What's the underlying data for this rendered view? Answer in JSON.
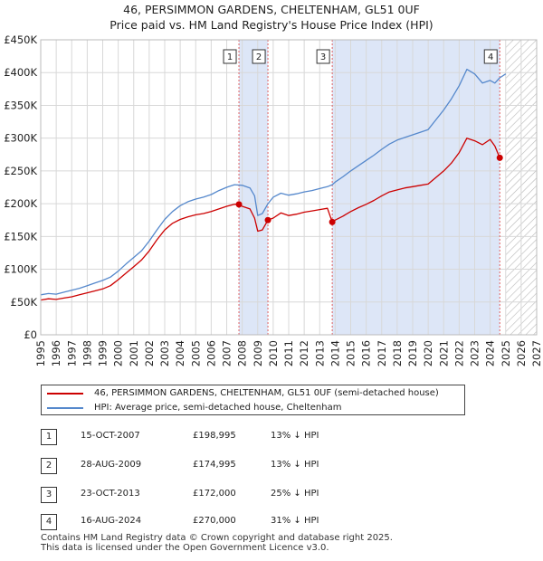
{
  "title_line1": "46, PERSIMMON GARDENS, CHELTENHAM, GL51 0UF",
  "title_line2": "Price paid vs. HM Land Registry's House Price Index (HPI)",
  "colors": {
    "property": "#cc0000",
    "hpi": "#5588cc",
    "shade": "#dde6f7",
    "grid": "#d8d8d8",
    "marker_line": "#e06060"
  },
  "chart_data": {
    "type": "line",
    "title": "46, PERSIMMON GARDENS, CHELTENHAM, GL51 0UF — Price paid vs. HM Land Registry's House Price Index (HPI)",
    "xlabel": "",
    "ylabel": "",
    "xlim": [
      1995,
      2027
    ],
    "ylim": [
      0,
      450000
    ],
    "y_ticks": [
      0,
      50000,
      100000,
      150000,
      200000,
      250000,
      300000,
      350000,
      400000,
      450000
    ],
    "y_tick_labels": [
      "£0",
      "£50K",
      "£100K",
      "£150K",
      "£200K",
      "£250K",
      "£300K",
      "£350K",
      "£400K",
      "£450K"
    ],
    "x_ticks": [
      1995,
      1996,
      1997,
      1998,
      1999,
      2000,
      2001,
      2002,
      2003,
      2004,
      2005,
      2006,
      2007,
      2008,
      2009,
      2010,
      2011,
      2012,
      2013,
      2014,
      2015,
      2016,
      2017,
      2018,
      2019,
      2020,
      2021,
      2022,
      2023,
      2024,
      2025,
      2026,
      2027
    ],
    "grid": true,
    "shaded_regions": [
      [
        2007.79,
        2009.66
      ],
      [
        2013.81,
        2024.62
      ]
    ],
    "hatched_from": 2025.0,
    "series": [
      {
        "name": "46, PERSIMMON GARDENS, CHELTENHAM, GL51 0UF (semi-detached house)",
        "points": [
          [
            1995.0,
            53000
          ],
          [
            1995.5,
            55000
          ],
          [
            1996.0,
            54000
          ],
          [
            1996.5,
            56000
          ],
          [
            1997.0,
            58000
          ],
          [
            1997.5,
            61000
          ],
          [
            1998.0,
            64000
          ],
          [
            1998.5,
            67000
          ],
          [
            1999.0,
            70000
          ],
          [
            1999.5,
            75000
          ],
          [
            2000.0,
            84000
          ],
          [
            2000.5,
            94000
          ],
          [
            2001.0,
            104000
          ],
          [
            2001.5,
            114000
          ],
          [
            2002.0,
            128000
          ],
          [
            2002.5,
            145000
          ],
          [
            2003.0,
            160000
          ],
          [
            2003.5,
            170000
          ],
          [
            2004.0,
            176000
          ],
          [
            2004.5,
            180000
          ],
          [
            2005.0,
            183000
          ],
          [
            2005.5,
            185000
          ],
          [
            2006.0,
            188000
          ],
          [
            2006.5,
            192000
          ],
          [
            2007.0,
            196000
          ],
          [
            2007.5,
            199000
          ],
          [
            2007.79,
            198995
          ],
          [
            2008.0,
            196000
          ],
          [
            2008.5,
            192000
          ],
          [
            2008.8,
            178000
          ],
          [
            2009.0,
            158000
          ],
          [
            2009.3,
            160000
          ],
          [
            2009.66,
            174995
          ],
          [
            2010.0,
            178000
          ],
          [
            2010.5,
            186000
          ],
          [
            2011.0,
            182000
          ],
          [
            2011.5,
            184000
          ],
          [
            2012.0,
            187000
          ],
          [
            2012.5,
            189000
          ],
          [
            2013.0,
            191000
          ],
          [
            2013.5,
            193000
          ],
          [
            2013.81,
            172000
          ],
          [
            2014.0,
            175000
          ],
          [
            2014.5,
            181000
          ],
          [
            2015.0,
            188000
          ],
          [
            2015.5,
            194000
          ],
          [
            2016.0,
            199000
          ],
          [
            2016.5,
            205000
          ],
          [
            2017.0,
            212000
          ],
          [
            2017.5,
            218000
          ],
          [
            2018.0,
            221000
          ],
          [
            2018.5,
            224000
          ],
          [
            2019.0,
            226000
          ],
          [
            2019.5,
            228000
          ],
          [
            2020.0,
            230000
          ],
          [
            2020.5,
            240000
          ],
          [
            2021.0,
            250000
          ],
          [
            2021.5,
            262000
          ],
          [
            2022.0,
            278000
          ],
          [
            2022.5,
            300000
          ],
          [
            2023.0,
            296000
          ],
          [
            2023.5,
            290000
          ],
          [
            2024.0,
            298000
          ],
          [
            2024.3,
            288000
          ],
          [
            2024.62,
            270000
          ]
        ]
      },
      {
        "name": "HPI: Average price, semi-detached house, Cheltenham",
        "points": [
          [
            1995.0,
            61000
          ],
          [
            1995.5,
            63000
          ],
          [
            1996.0,
            62000
          ],
          [
            1996.5,
            65000
          ],
          [
            1997.0,
            68000
          ],
          [
            1997.5,
            71000
          ],
          [
            1998.0,
            75000
          ],
          [
            1998.5,
            79000
          ],
          [
            1999.0,
            83000
          ],
          [
            1999.5,
            88000
          ],
          [
            2000.0,
            97000
          ],
          [
            2000.5,
            108000
          ],
          [
            2001.0,
            118000
          ],
          [
            2001.5,
            128000
          ],
          [
            2002.0,
            143000
          ],
          [
            2002.5,
            160000
          ],
          [
            2003.0,
            176000
          ],
          [
            2003.5,
            188000
          ],
          [
            2004.0,
            197000
          ],
          [
            2004.5,
            203000
          ],
          [
            2005.0,
            207000
          ],
          [
            2005.5,
            210000
          ],
          [
            2006.0,
            214000
          ],
          [
            2006.5,
            220000
          ],
          [
            2007.0,
            225000
          ],
          [
            2007.5,
            229000
          ],
          [
            2008.0,
            228000
          ],
          [
            2008.5,
            224000
          ],
          [
            2008.8,
            212000
          ],
          [
            2009.0,
            182000
          ],
          [
            2009.3,
            185000
          ],
          [
            2009.66,
            200000
          ],
          [
            2010.0,
            210000
          ],
          [
            2010.5,
            216000
          ],
          [
            2011.0,
            213000
          ],
          [
            2011.5,
            215000
          ],
          [
            2012.0,
            218000
          ],
          [
            2012.5,
            220000
          ],
          [
            2013.0,
            223000
          ],
          [
            2013.5,
            226000
          ],
          [
            2013.81,
            229000
          ],
          [
            2014.0,
            233000
          ],
          [
            2014.5,
            241000
          ],
          [
            2015.0,
            250000
          ],
          [
            2015.5,
            258000
          ],
          [
            2016.0,
            266000
          ],
          [
            2016.5,
            274000
          ],
          [
            2017.0,
            283000
          ],
          [
            2017.5,
            291000
          ],
          [
            2018.0,
            297000
          ],
          [
            2018.5,
            301000
          ],
          [
            2019.0,
            305000
          ],
          [
            2019.5,
            309000
          ],
          [
            2020.0,
            313000
          ],
          [
            2020.5,
            328000
          ],
          [
            2021.0,
            343000
          ],
          [
            2021.5,
            360000
          ],
          [
            2022.0,
            380000
          ],
          [
            2022.5,
            405000
          ],
          [
            2023.0,
            398000
          ],
          [
            2023.5,
            384000
          ],
          [
            2024.0,
            388000
          ],
          [
            2024.3,
            384000
          ],
          [
            2024.62,
            392000
          ],
          [
            2025.0,
            398000
          ]
        ]
      }
    ],
    "sale_markers": [
      {
        "label": "1",
        "year": 2007.79,
        "value": 198995
      },
      {
        "label": "2",
        "year": 2009.66,
        "value": 174995
      },
      {
        "label": "3",
        "year": 2013.81,
        "value": 172000
      },
      {
        "label": "4",
        "year": 2024.62,
        "value": 270000
      }
    ]
  },
  "legend": {
    "property_label": "46, PERSIMMON GARDENS, CHELTENHAM, GL51 0UF (semi-detached house)",
    "hpi_label": "HPI: Average price, semi-detached house, Cheltenham"
  },
  "sales": [
    {
      "num": "1",
      "date": "15-OCT-2007",
      "price": "£198,995",
      "hpi": "13% ↓ HPI"
    },
    {
      "num": "2",
      "date": "28-AUG-2009",
      "price": "£174,995",
      "hpi": "13% ↓ HPI"
    },
    {
      "num": "3",
      "date": "23-OCT-2013",
      "price": "£172,000",
      "hpi": "25% ↓ HPI"
    },
    {
      "num": "4",
      "date": "16-AUG-2024",
      "price": "£270,000",
      "hpi": "31% ↓ HPI"
    }
  ],
  "footer_line1": "Contains HM Land Registry data © Crown copyright and database right 2025.",
  "footer_line2": "This data is licensed under the Open Government Licence v3.0."
}
